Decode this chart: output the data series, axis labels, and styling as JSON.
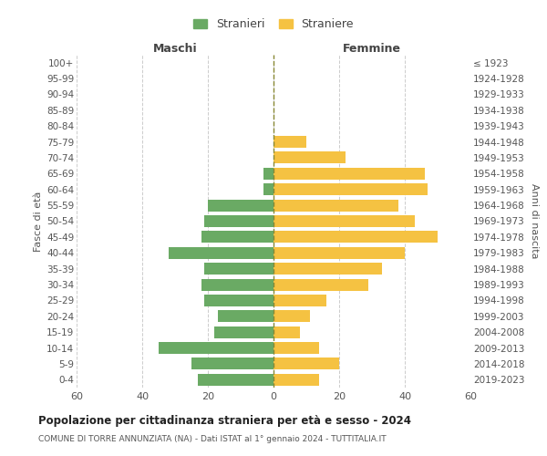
{
  "age_groups": [
    "0-4",
    "5-9",
    "10-14",
    "15-19",
    "20-24",
    "25-29",
    "30-34",
    "35-39",
    "40-44",
    "45-49",
    "50-54",
    "55-59",
    "60-64",
    "65-69",
    "70-74",
    "75-79",
    "80-84",
    "85-89",
    "90-94",
    "95-99",
    "100+"
  ],
  "birth_years": [
    "2019-2023",
    "2014-2018",
    "2009-2013",
    "2004-2008",
    "1999-2003",
    "1994-1998",
    "1989-1993",
    "1984-1988",
    "1979-1983",
    "1974-1978",
    "1969-1973",
    "1964-1968",
    "1959-1963",
    "1954-1958",
    "1949-1953",
    "1944-1948",
    "1939-1943",
    "1934-1938",
    "1929-1933",
    "1924-1928",
    "≤ 1923"
  ],
  "maschi": [
    23,
    25,
    35,
    18,
    17,
    21,
    22,
    21,
    32,
    22,
    21,
    20,
    3,
    3,
    0,
    0,
    0,
    0,
    0,
    0,
    0
  ],
  "femmine": [
    14,
    20,
    14,
    8,
    11,
    16,
    29,
    33,
    40,
    50,
    43,
    38,
    47,
    46,
    22,
    10,
    0,
    0,
    0,
    0,
    0
  ],
  "color_maschi": "#6aaa64",
  "color_femmine": "#f5c242",
  "title_main": "Popolazione per cittadinanza straniera per età e sesso - 2024",
  "title_sub": "COMUNE DI TORRE ANNUNZIATA (NA) - Dati ISTAT al 1° gennaio 2024 - TUTTITALIA.IT",
  "xlabel_left": "Maschi",
  "xlabel_right": "Femmine",
  "ylabel_left": "Fasce di età",
  "ylabel_right": "Anni di nascita",
  "legend_maschi": "Stranieri",
  "legend_femmine": "Straniere",
  "xlim": 60,
  "background_color": "#ffffff",
  "grid_color": "#cccccc"
}
